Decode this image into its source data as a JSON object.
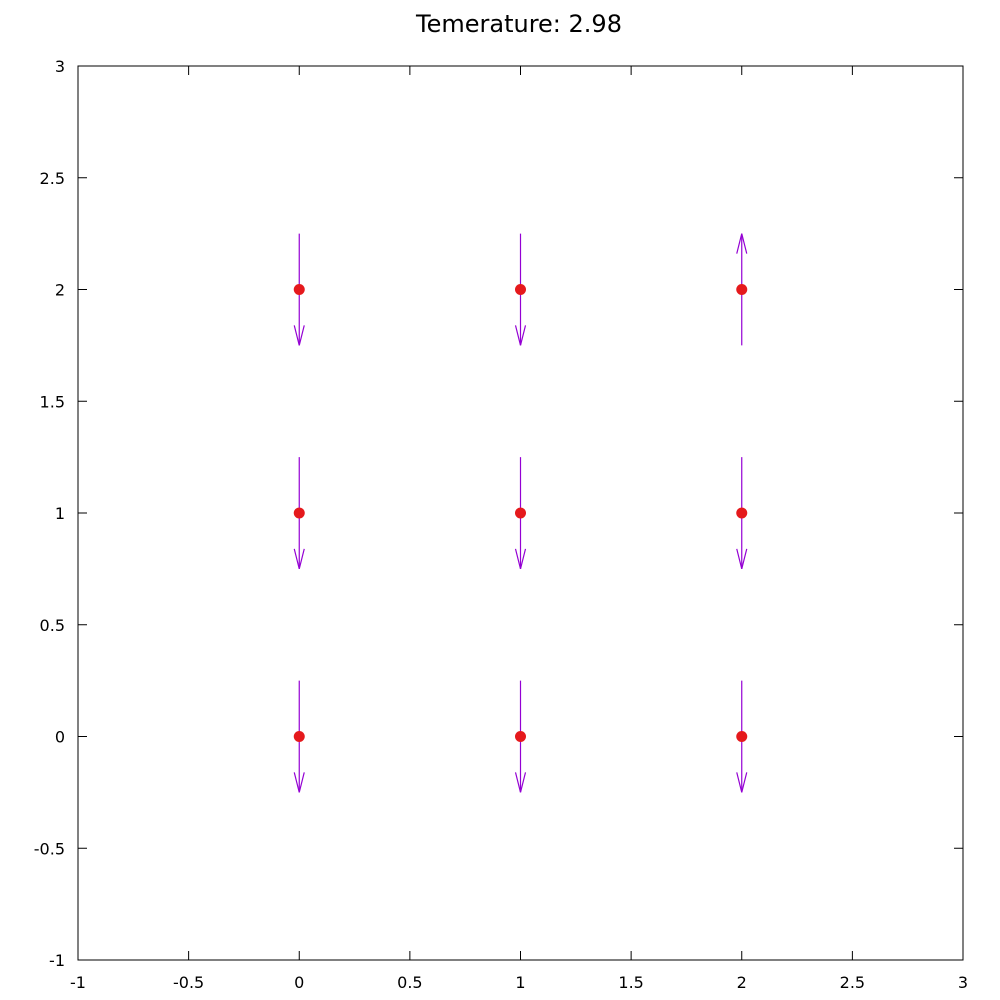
{
  "chart_data": {
    "type": "scatter",
    "title": "Temerature: 2.98",
    "xlabel": "",
    "ylabel": "",
    "xlim": [
      -1,
      3
    ],
    "ylim": [
      -1,
      3
    ],
    "x_ticks": [
      -1,
      -0.5,
      0,
      0.5,
      1,
      1.5,
      2,
      2.5,
      3
    ],
    "y_ticks": [
      -1,
      -0.5,
      0,
      0.5,
      1,
      1.5,
      2,
      2.5,
      3
    ],
    "x_tick_labels": [
      "-1",
      "-0.5",
      "0",
      "0.5",
      "1",
      "1.5",
      "2",
      "2.5",
      "3"
    ],
    "y_tick_labels": [
      "-1",
      "-0.5",
      "0",
      "0.5",
      "1",
      "1.5",
      "2",
      "2.5",
      "3"
    ],
    "grid": false,
    "legend": "none",
    "point_color": "#e5191c",
    "arrow_color": "#9400d3",
    "arrow_half_length": 0.25,
    "points": [
      {
        "x": 0,
        "y": 2,
        "spin": -1
      },
      {
        "x": 1,
        "y": 2,
        "spin": -1
      },
      {
        "x": 2,
        "y": 2,
        "spin": 1
      },
      {
        "x": 0,
        "y": 1,
        "spin": -1
      },
      {
        "x": 1,
        "y": 1,
        "spin": -1
      },
      {
        "x": 2,
        "y": 1,
        "spin": -1
      },
      {
        "x": 0,
        "y": 0,
        "spin": -1
      },
      {
        "x": 1,
        "y": 0,
        "spin": -1
      },
      {
        "x": 2,
        "y": 0,
        "spin": -1
      }
    ]
  }
}
